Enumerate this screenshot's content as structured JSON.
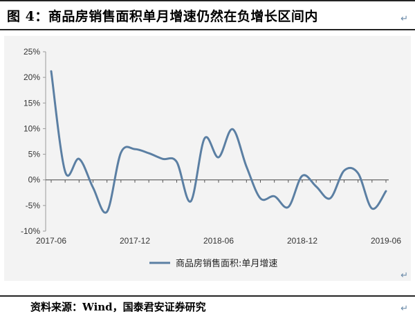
{
  "header": {
    "title": "图 4：商品房销售面积单月增速仍然在负增长区间内"
  },
  "footer": {
    "source": "资料来源：Wind，国泰君安证券研究"
  },
  "marks": {
    "return_glyph": "↵"
  },
  "chart_data": {
    "type": "line",
    "title": "",
    "xlabel": "",
    "ylabel": "",
    "ylim": [
      -10,
      25
    ],
    "yticks": [
      25,
      20,
      15,
      10,
      5,
      0,
      -5,
      -10
    ],
    "ytick_labels": [
      "25%",
      "20%",
      "15%",
      "10%",
      "5%",
      "0%",
      "-5%",
      "-10%"
    ],
    "xtick_labels": [
      "2017-06",
      "2017-12",
      "2018-06",
      "2018-12",
      "2019-06"
    ],
    "grid": false,
    "legend_position": "bottom-center",
    "series": [
      {
        "name": "商品房销售面积:单月增速",
        "color": "#5b7fa3",
        "x": [
          "2017-06",
          "2017-07",
          "2017-08",
          "2017-09",
          "2017-10",
          "2017-11",
          "2017-12",
          "2018-01",
          "2018-02",
          "2018-03",
          "2018-04",
          "2018-05",
          "2018-06",
          "2018-07",
          "2018-08",
          "2018-09",
          "2018-10",
          "2018-11",
          "2018-12",
          "2019-01",
          "2019-02",
          "2019-03",
          "2019-04",
          "2019-05",
          "2019-06"
        ],
        "values": [
          21.2,
          1.6,
          4.1,
          -1.5,
          -6.2,
          5.3,
          6.0,
          5.2,
          4.1,
          3.5,
          -4.2,
          8.1,
          4.4,
          9.9,
          2.6,
          -3.6,
          -3.2,
          -5.3,
          0.8,
          -1.3,
          -3.6,
          1.8,
          1.3,
          -5.6,
          -2.2
        ]
      }
    ]
  }
}
